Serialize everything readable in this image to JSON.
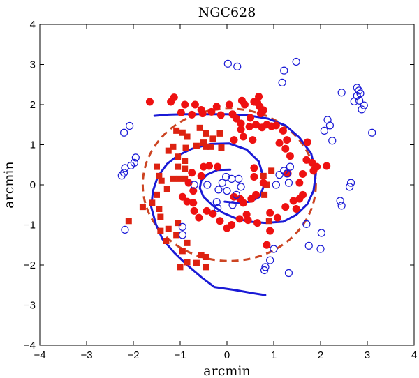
{
  "chart_data": {
    "type": "scatter",
    "title": "NGC628",
    "xlabel": "arcmin",
    "ylabel": "arcmin",
    "xlim": [
      -4,
      4
    ],
    "ylim": [
      -4,
      4
    ],
    "xticks": [
      -4,
      -3,
      -2,
      -1,
      0,
      1,
      2,
      3,
      4
    ],
    "yticks": [
      -4,
      -3,
      -2,
      -1,
      0,
      1,
      2,
      3,
      4
    ],
    "xtick_labels": [
      "−4",
      "−3",
      "−2",
      "−1",
      "0",
      "1",
      "2",
      "3",
      "4"
    ],
    "ytick_labels": [
      "−4",
      "−3",
      "−2",
      "−1",
      "0",
      "1",
      "2",
      "3",
      "4"
    ],
    "grid": false,
    "series": [
      {
        "name": "spiral-arm-model",
        "kind": "line",
        "style": "solid",
        "color": "#1a1ad6",
        "segments": [
          [
            [
              0.07,
              0.38
            ],
            [
              -0.2,
              0.37
            ],
            [
              -0.42,
              0.26
            ],
            [
              -0.55,
              0.1
            ],
            [
              -0.58,
              -0.08
            ],
            [
              -0.5,
              -0.3
            ],
            [
              -0.3,
              -0.52
            ],
            [
              -0.08,
              -0.7
            ],
            [
              0.18,
              -0.83
            ],
            [
              0.48,
              -0.92
            ],
            [
              0.82,
              -0.95
            ],
            [
              1.2,
              -0.92
            ],
            [
              1.48,
              -0.75
            ],
            [
              1.72,
              -0.48
            ],
            [
              1.85,
              -0.15
            ],
            [
              1.9,
              0.28
            ],
            [
              1.8,
              0.78
            ],
            [
              1.55,
              1.18
            ],
            [
              1.25,
              1.48
            ],
            [
              0.88,
              1.65
            ],
            [
              0.45,
              1.73
            ],
            [
              0.0,
              1.76
            ],
            [
              -0.45,
              1.76
            ],
            [
              -0.9,
              1.76
            ],
            [
              -1.25,
              1.75
            ],
            [
              -1.55,
              1.72
            ]
          ],
          [
            [
              -0.05,
              -0.42
            ],
            [
              0.22,
              -0.45
            ],
            [
              0.5,
              -0.42
            ],
            [
              0.7,
              -0.3
            ],
            [
              0.78,
              -0.05
            ],
            [
              0.75,
              0.3
            ],
            [
              0.68,
              0.58
            ],
            [
              0.42,
              0.88
            ],
            [
              0.05,
              1.03
            ],
            [
              -0.35,
              1.02
            ],
            [
              -0.75,
              0.9
            ],
            [
              -1.05,
              0.73
            ],
            [
              -1.28,
              0.52
            ],
            [
              -1.48,
              0.2
            ],
            [
              -1.58,
              -0.15
            ],
            [
              -1.62,
              -0.55
            ],
            [
              -1.52,
              -0.98
            ],
            [
              -1.38,
              -1.35
            ],
            [
              -1.12,
              -1.7
            ],
            [
              -0.85,
              -2.0
            ],
            [
              -0.55,
              -2.3
            ],
            [
              -0.27,
              -2.55
            ],
            [
              0.15,
              -2.62
            ],
            [
              0.55,
              -2.7
            ],
            [
              0.82,
              -2.75
            ]
          ]
        ]
      },
      {
        "name": "ellipse-fit",
        "kind": "ellipse",
        "style": "dashed",
        "color": "#cc4422",
        "center": [
          0.05,
          0.0
        ],
        "rx": 1.85,
        "ry": 1.9
      },
      {
        "name": "red-circles",
        "kind": "scatter",
        "marker": "filled-circle",
        "color": "#ee1111",
        "points": [
          [
            -1.65,
            2.07
          ],
          [
            -1.2,
            2.07
          ],
          [
            -1.13,
            2.18
          ],
          [
            -0.9,
            2.0
          ],
          [
            -0.68,
            2.0
          ],
          [
            -0.55,
            1.87
          ],
          [
            -0.98,
            1.8
          ],
          [
            -0.75,
            1.75
          ],
          [
            -0.33,
            1.82
          ],
          [
            -0.52,
            1.78
          ],
          [
            -0.13,
            1.74
          ],
          [
            -0.22,
            1.95
          ],
          [
            0.12,
            1.76
          ],
          [
            0.2,
            1.65
          ],
          [
            0.3,
            1.53
          ],
          [
            0.05,
            2.0
          ],
          [
            0.32,
            2.1
          ],
          [
            0.38,
            2.0
          ],
          [
            0.58,
            2.07
          ],
          [
            0.68,
            2.2
          ],
          [
            0.65,
            2.05
          ],
          [
            0.7,
            1.95
          ],
          [
            0.78,
            1.86
          ],
          [
            0.72,
            1.78
          ],
          [
            0.5,
            1.67
          ],
          [
            0.3,
            1.38
          ],
          [
            0.48,
            1.45
          ],
          [
            0.62,
            1.5
          ],
          [
            0.75,
            1.43
          ],
          [
            0.85,
            1.5
          ],
          [
            0.95,
            1.46
          ],
          [
            1.05,
            1.48
          ],
          [
            1.2,
            1.35
          ],
          [
            1.28,
            1.12
          ],
          [
            1.12,
            1.04
          ],
          [
            1.25,
            0.9
          ],
          [
            1.35,
            0.72
          ],
          [
            1.72,
            1.06
          ],
          [
            1.7,
            0.62
          ],
          [
            1.82,
            0.55
          ],
          [
            1.85,
            0.35
          ],
          [
            1.92,
            0.45
          ],
          [
            2.13,
            0.47
          ],
          [
            1.62,
            0.27
          ],
          [
            1.55,
            0.05
          ],
          [
            1.62,
            -0.25
          ],
          [
            1.55,
            -0.35
          ],
          [
            1.42,
            -0.4
          ],
          [
            1.48,
            -0.6
          ],
          [
            1.25,
            -0.55
          ],
          [
            1.08,
            -0.82
          ],
          [
            0.92,
            -0.7
          ],
          [
            0.92,
            -1.15
          ],
          [
            0.85,
            -1.5
          ],
          [
            0.65,
            -0.95
          ],
          [
            0.42,
            -0.74
          ],
          [
            0.45,
            -0.88
          ],
          [
            0.27,
            -0.85
          ],
          [
            0.1,
            -1.0
          ],
          [
            0.0,
            -1.08
          ],
          [
            -0.15,
            -0.9
          ],
          [
            -0.3,
            -0.72
          ],
          [
            -0.43,
            -0.65
          ],
          [
            -0.6,
            -0.82
          ],
          [
            -0.7,
            -0.65
          ],
          [
            -0.72,
            -0.45
          ],
          [
            -0.85,
            -0.42
          ],
          [
            -0.95,
            -0.3
          ],
          [
            -0.72,
            -0.15
          ],
          [
            -0.82,
            0.05
          ],
          [
            -0.75,
            0.3
          ],
          [
            -0.55,
            0.22
          ],
          [
            -0.5,
            0.45
          ],
          [
            -0.38,
            0.47
          ],
          [
            -0.2,
            0.45
          ],
          [
            0.15,
            -0.3
          ],
          [
            0.28,
            -0.35
          ],
          [
            0.35,
            -0.45
          ],
          [
            0.52,
            -0.35
          ],
          [
            0.62,
            -0.25
          ],
          [
            0.58,
            0.2
          ],
          [
            0.78,
            0.05
          ],
          [
            0.58,
            0.42
          ],
          [
            0.35,
            1.2
          ],
          [
            0.15,
            1.12
          ],
          [
            0.55,
            1.12
          ],
          [
            1.3,
            0.28
          ]
        ]
      },
      {
        "name": "red-squares",
        "kind": "scatter",
        "marker": "filled-square",
        "color": "#dd2211",
        "points": [
          [
            -1.08,
            1.35
          ],
          [
            -0.95,
            1.3
          ],
          [
            -0.85,
            1.2
          ],
          [
            -0.58,
            1.42
          ],
          [
            -0.45,
            1.28
          ],
          [
            -0.15,
            1.28
          ],
          [
            -0.3,
            1.15
          ],
          [
            -0.5,
            1.05
          ],
          [
            -0.65,
            0.97
          ],
          [
            -0.45,
            0.95
          ],
          [
            -0.35,
            0.95
          ],
          [
            -0.12,
            0.93
          ],
          [
            -0.88,
            0.92
          ],
          [
            -1.15,
            0.95
          ],
          [
            -1.05,
            0.7
          ],
          [
            -1.25,
            0.85
          ],
          [
            -0.9,
            0.6
          ],
          [
            -1.05,
            0.45
          ],
          [
            -0.9,
            0.4
          ],
          [
            -1.5,
            0.45
          ],
          [
            -1.45,
            0.22
          ],
          [
            -1.4,
            0.1
          ],
          [
            -1.28,
            -0.1
          ],
          [
            -1.15,
            0.15
          ],
          [
            -1.02,
            0.15
          ],
          [
            -0.9,
            0.15
          ],
          [
            -1.5,
            -0.25
          ],
          [
            -1.6,
            -0.45
          ],
          [
            -1.45,
            -0.6
          ],
          [
            -1.42,
            -0.8
          ],
          [
            -1.42,
            -1.15
          ],
          [
            -1.25,
            -1.1
          ],
          [
            -1.05,
            -0.95
          ],
          [
            -1.3,
            -1.4
          ],
          [
            -1.08,
            -1.25
          ],
          [
            -0.85,
            -1.45
          ],
          [
            -0.95,
            -1.65
          ],
          [
            -0.55,
            -1.75
          ],
          [
            -0.65,
            -1.95
          ],
          [
            -0.45,
            -2.05
          ],
          [
            -0.45,
            -1.8
          ],
          [
            -0.85,
            -1.93
          ],
          [
            -1.0,
            -2.05
          ],
          [
            -1.8,
            -0.55
          ],
          [
            -2.1,
            -0.9
          ],
          [
            0.9,
            -0.9
          ],
          [
            0.78,
            0.22
          ],
          [
            0.85,
            0.0
          ],
          [
            0.8,
            -0.25
          ],
          [
            0.95,
            0.35
          ]
        ]
      },
      {
        "name": "blue-open-circles",
        "kind": "scatter",
        "marker": "open-circle",
        "color": "#1a1ad6",
        "points": [
          [
            0.02,
            3.02
          ],
          [
            0.22,
            2.95
          ],
          [
            1.48,
            3.07
          ],
          [
            1.22,
            2.85
          ],
          [
            1.18,
            2.55
          ],
          [
            2.45,
            2.3
          ],
          [
            2.78,
            2.42
          ],
          [
            2.82,
            2.35
          ],
          [
            2.78,
            2.22
          ],
          [
            2.85,
            2.28
          ],
          [
            2.83,
            2.1
          ],
          [
            2.72,
            2.08
          ],
          [
            2.93,
            1.98
          ],
          [
            2.88,
            1.88
          ],
          [
            3.1,
            1.3
          ],
          [
            2.15,
            1.62
          ],
          [
            2.2,
            1.48
          ],
          [
            2.08,
            1.35
          ],
          [
            2.25,
            1.1
          ],
          [
            1.22,
            0.35
          ],
          [
            1.28,
            0.28
          ],
          [
            1.35,
            0.45
          ],
          [
            1.12,
            0.25
          ],
          [
            1.05,
            0.0
          ],
          [
            1.32,
            0.05
          ],
          [
            -2.08,
            1.47
          ],
          [
            -2.2,
            1.3
          ],
          [
            -1.95,
            0.68
          ],
          [
            -1.98,
            0.55
          ],
          [
            -2.05,
            0.48
          ],
          [
            -2.18,
            0.42
          ],
          [
            -2.2,
            0.3
          ],
          [
            -2.25,
            0.23
          ],
          [
            -2.18,
            -1.12
          ],
          [
            -0.95,
            -1.05
          ],
          [
            -0.95,
            -1.25
          ],
          [
            -0.7,
            0.0
          ],
          [
            -0.42,
            0.0
          ],
          [
            -0.18,
            -0.12
          ],
          [
            0.0,
            -0.15
          ],
          [
            0.2,
            -0.25
          ],
          [
            0.3,
            -0.05
          ],
          [
            -0.1,
            0.05
          ],
          [
            -0.02,
            0.2
          ],
          [
            0.1,
            0.15
          ],
          [
            0.25,
            0.15
          ],
          [
            -0.22,
            -0.43
          ],
          [
            -0.2,
            -0.58
          ],
          [
            0.12,
            -0.5
          ],
          [
            1.7,
            -0.98
          ],
          [
            1.75,
            -1.52
          ],
          [
            2.0,
            -1.6
          ],
          [
            2.02,
            -1.2
          ],
          [
            2.42,
            -0.4
          ],
          [
            2.45,
            -0.52
          ],
          [
            2.62,
            -0.05
          ],
          [
            2.65,
            0.05
          ],
          [
            1.0,
            -1.6
          ],
          [
            0.92,
            -1.88
          ],
          [
            0.82,
            -2.05
          ],
          [
            0.8,
            -2.13
          ],
          [
            1.32,
            -2.2
          ]
        ]
      }
    ]
  }
}
